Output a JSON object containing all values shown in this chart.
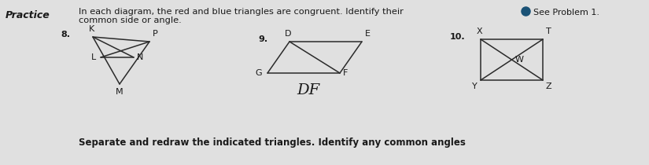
{
  "bg_color": "#e0e0e0",
  "text_color": "#1a1a1a",
  "line_color": "#2a2a2a",
  "practice_text": "Practice",
  "instruction_line1": "In each diagram, the red and blue triangles are congruent. Identify their",
  "instruction_line2": "common side or angle.",
  "see_problem": "See Problem 1.",
  "bottom_text": "Separate and redraw the indicated triangles. Identify any common angles",
  "bullet_color": "#1a5276",
  "d8_label": "8. K",
  "d9_label": "9.",
  "d10_label": "10. X",
  "d9_annotation": "DF"
}
